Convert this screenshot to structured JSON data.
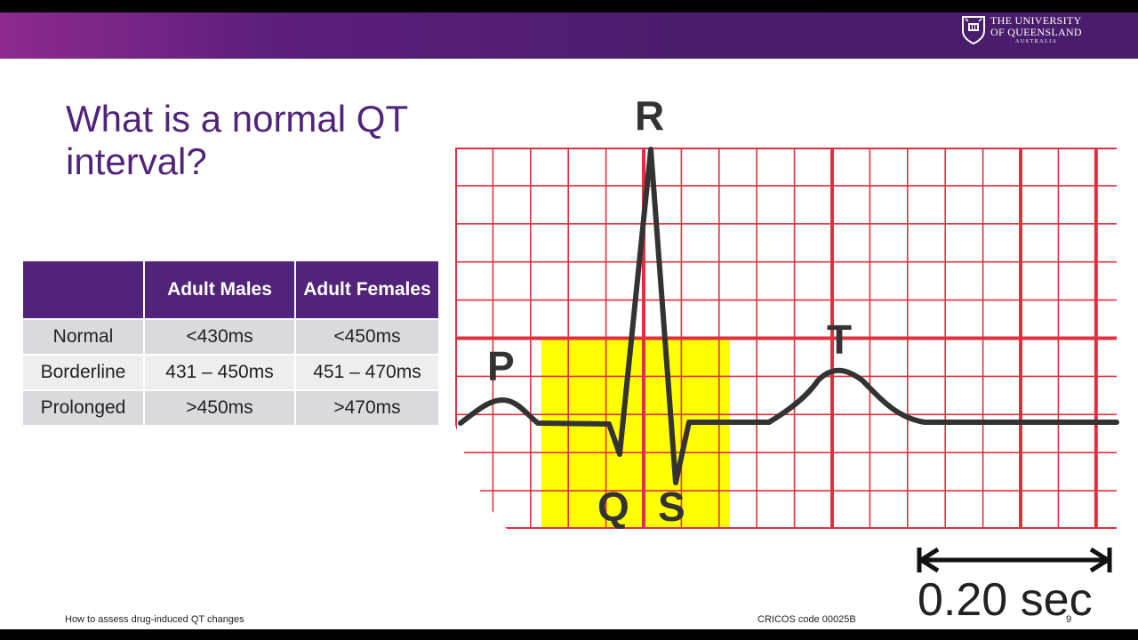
{
  "header": {
    "logo_line1": "THE UNIVERSITY",
    "logo_line2": "OF QUEENSLAND",
    "logo_line3": "AUSTRALIA"
  },
  "slide": {
    "title": "What is a normal QT interval?",
    "table": {
      "headers": [
        "",
        "Adult Males",
        "Adult Females"
      ],
      "rows": [
        [
          "Normal",
          "<430ms",
          "<450ms"
        ],
        [
          "Borderline",
          "431 – 450ms",
          "451 – 470ms"
        ],
        [
          "Prolonged",
          ">450ms",
          ">470ms"
        ]
      ]
    },
    "ecg": {
      "labels": {
        "p": "P",
        "q": "Q",
        "r": "R",
        "s": "S",
        "t": "T"
      },
      "scale_label": "0.20 sec"
    }
  },
  "footer": {
    "left": "How to assess drug-induced QT changes",
    "cricos": "CRICOS code 00025B",
    "page": "9"
  },
  "colors": {
    "purple": "#51247a",
    "grid_red": "#e0303f",
    "highlight_yellow": "#ffff00"
  }
}
